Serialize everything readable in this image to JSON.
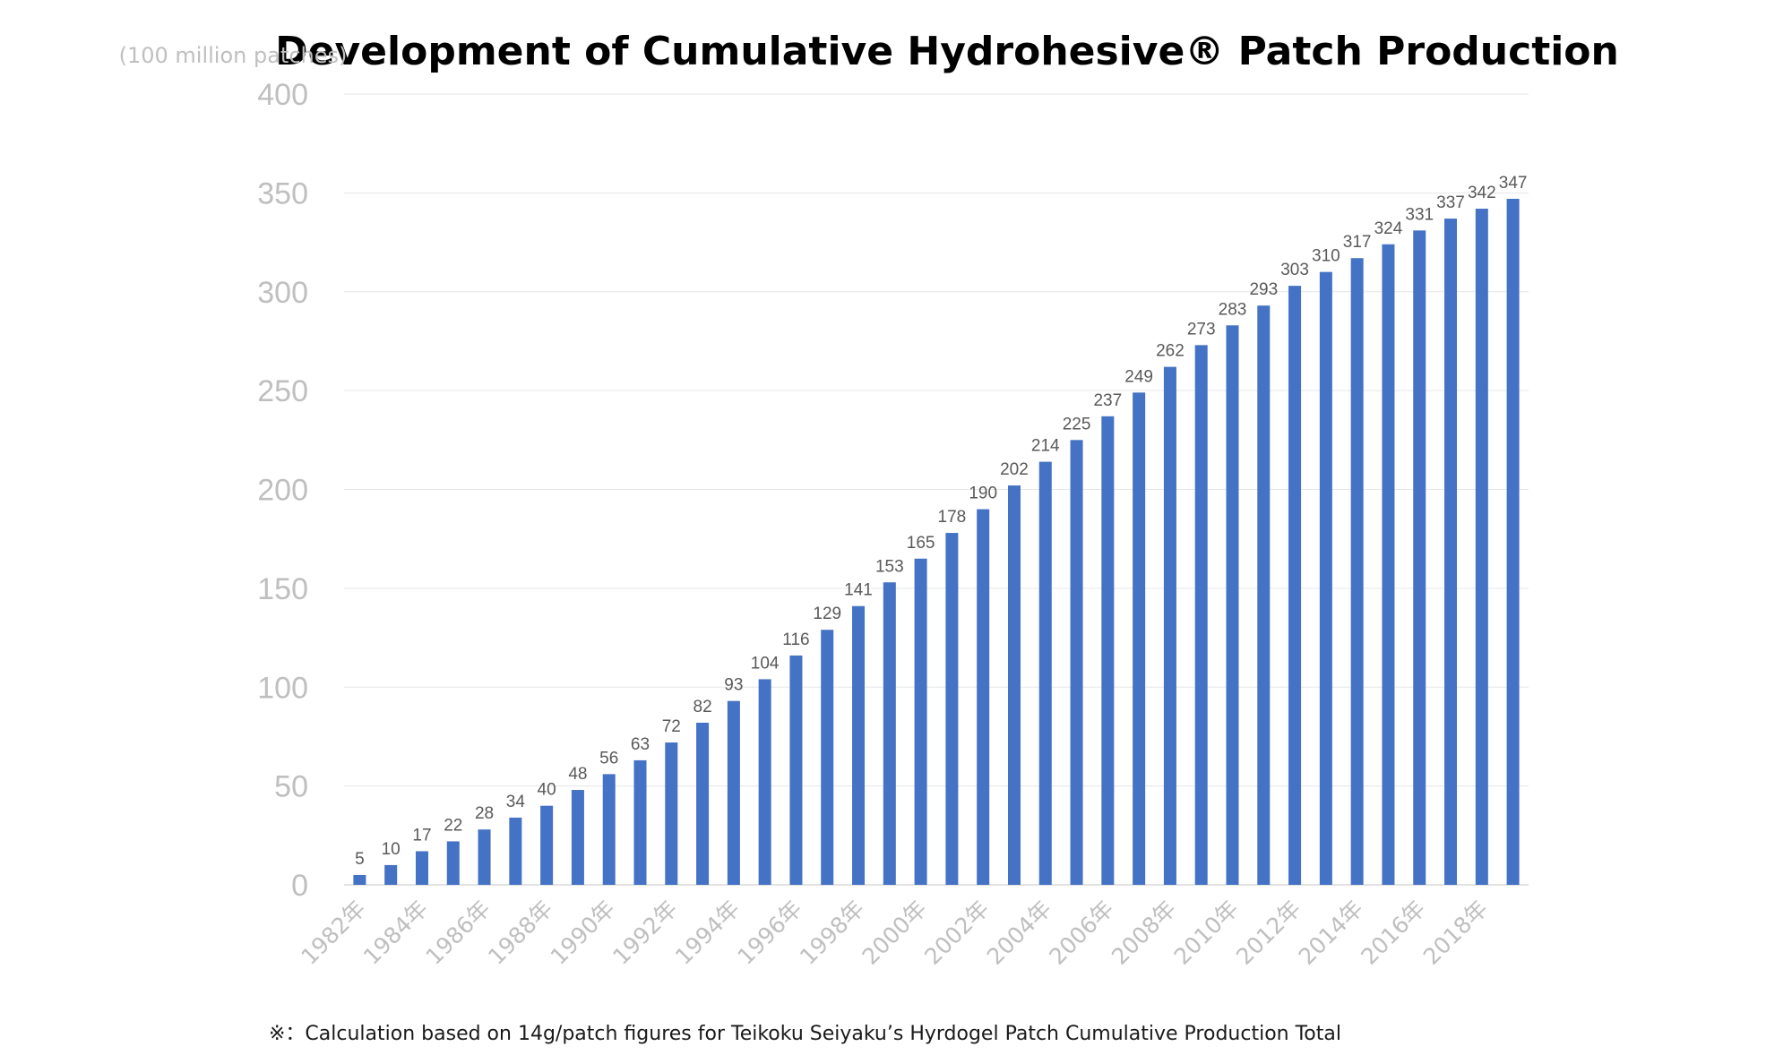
{
  "chart_data": {
    "type": "bar",
    "title": "Development of Cumulative Hydrohesive® Patch Production",
    "ylabel": "(100 million patches)",
    "xlabel": "",
    "ylim": [
      0,
      400
    ],
    "yticks": [
      0,
      50,
      100,
      150,
      200,
      250,
      300,
      350,
      400
    ],
    "grid": true,
    "bar_color": "#4472c4",
    "categories": [
      "1982年",
      "1983年",
      "1984年",
      "1985年",
      "1986年",
      "1987年",
      "1988年",
      "1989年",
      "1990年",
      "1991年",
      "1992年",
      "1993年",
      "1994年",
      "1995年",
      "1996年",
      "1997年",
      "1998年",
      "1999年",
      "2000年",
      "2001年",
      "2002年",
      "2003年",
      "2004年",
      "2005年",
      "2006年",
      "2007年",
      "2008年",
      "2009年",
      "2010年",
      "2011年",
      "2012年",
      "2013年",
      "2014年",
      "2015年",
      "2016年",
      "2017年",
      "2018年",
      "2019年"
    ],
    "shown_tick_labels": [
      "1982年",
      "1984年",
      "1986年",
      "1988年",
      "1990年",
      "1992年",
      "1994年",
      "1996年",
      "1998年",
      "2000年",
      "2002年",
      "2004年",
      "2006年",
      "2008年",
      "2010年",
      "2012年",
      "2014年",
      "2016年",
      "2018年"
    ],
    "values": [
      5,
      10,
      17,
      22,
      28,
      34,
      40,
      48,
      56,
      63,
      72,
      82,
      93,
      104,
      116,
      129,
      141,
      153,
      165,
      178,
      190,
      202,
      214,
      225,
      237,
      249,
      262,
      273,
      283,
      293,
      303,
      310,
      317,
      324,
      331,
      337,
      342,
      347
    ]
  },
  "footnote": "※：Calculation based on 14g/patch figures for Teikoku Seiyaku’s Hyrdogel Patch Cumulative Production Total"
}
